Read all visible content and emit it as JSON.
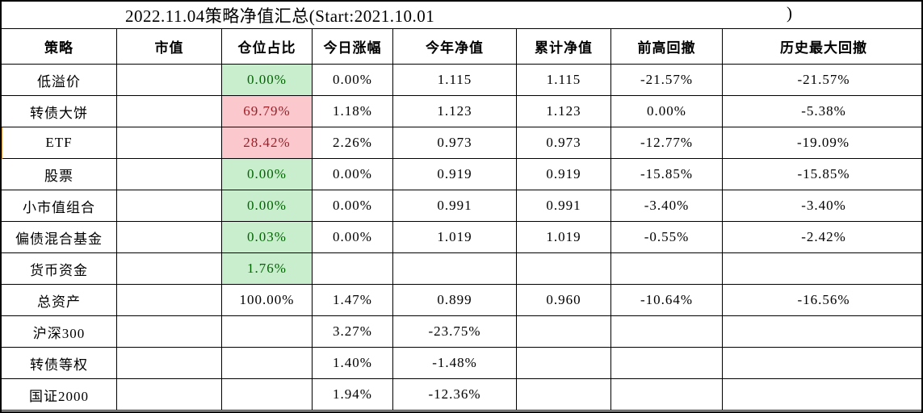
{
  "title": {
    "text": "2022.11.04策略净值汇总(Start:2021.10.01",
    "closing_paren": ")"
  },
  "colors": {
    "positive_bg": "#c9eecd",
    "positive_text": "#006400",
    "negative_bg": "#fbc8cd",
    "negative_text": "#9c1e26",
    "active_row_marker": "#e49b3f",
    "grid_border": "#000000"
  },
  "table": {
    "columns": [
      {
        "key": "strategy",
        "label": "策略"
      },
      {
        "key": "market_value",
        "label": "市值"
      },
      {
        "key": "position",
        "label": "仓位占比"
      },
      {
        "key": "today_change",
        "label": "今日涨幅"
      },
      {
        "key": "ytd_nav",
        "label": "今年净值"
      },
      {
        "key": "cum_nav",
        "label": "累计净值"
      },
      {
        "key": "drawdown_from_prev_high",
        "label": "前高回撤"
      },
      {
        "key": "max_drawdown",
        "label": "历史最大回撤"
      }
    ],
    "rows": [
      {
        "strategy": "低溢价",
        "market_value": "",
        "position": "0.00%",
        "position_style": "green",
        "today_change": "0.00%",
        "ytd_nav": "1.115",
        "cum_nav": "1.115",
        "drawdown_from_prev_high": "-21.57%",
        "max_drawdown": "-21.57%",
        "left_marker": false
      },
      {
        "strategy": "转债大饼",
        "market_value": "",
        "position": "69.79%",
        "position_style": "red",
        "today_change": "1.18%",
        "ytd_nav": "1.123",
        "cum_nav": "1.123",
        "drawdown_from_prev_high": "0.00%",
        "max_drawdown": "-5.38%",
        "left_marker": false
      },
      {
        "strategy": "ETF",
        "market_value": "",
        "position": "28.42%",
        "position_style": "red",
        "today_change": "2.26%",
        "ytd_nav": "0.973",
        "cum_nav": "0.973",
        "drawdown_from_prev_high": "-12.77%",
        "max_drawdown": "-19.09%",
        "left_marker": true
      },
      {
        "strategy": "股票",
        "market_value": "",
        "position": "0.00%",
        "position_style": "green",
        "today_change": "0.00%",
        "ytd_nav": "0.919",
        "cum_nav": "0.919",
        "drawdown_from_prev_high": "-15.85%",
        "max_drawdown": "-15.85%",
        "left_marker": false
      },
      {
        "strategy": "小市值组合",
        "market_value": "",
        "position": "0.00%",
        "position_style": "green",
        "today_change": "0.00%",
        "ytd_nav": "0.991",
        "cum_nav": "0.991",
        "drawdown_from_prev_high": "-3.40%",
        "max_drawdown": "-3.40%",
        "left_marker": false
      },
      {
        "strategy": "偏债混合基金",
        "market_value": "",
        "position": "0.03%",
        "position_style": "green",
        "today_change": "0.00%",
        "ytd_nav": "1.019",
        "cum_nav": "1.019",
        "drawdown_from_prev_high": "-0.55%",
        "max_drawdown": "-2.42%",
        "left_marker": false
      },
      {
        "strategy": "货币资金",
        "market_value": "",
        "position": "1.76%",
        "position_style": "green",
        "today_change": "",
        "ytd_nav": "",
        "cum_nav": "",
        "drawdown_from_prev_high": "",
        "max_drawdown": "",
        "left_marker": false
      },
      {
        "strategy": "总资产",
        "market_value": "",
        "position": "100.00%",
        "position_style": "none",
        "today_change": "1.47%",
        "ytd_nav": "0.899",
        "cum_nav": "0.960",
        "drawdown_from_prev_high": "-10.64%",
        "max_drawdown": "-16.56%",
        "left_marker": false
      },
      {
        "strategy": "沪深300",
        "market_value": "",
        "position": "",
        "position_style": "none",
        "today_change": "3.27%",
        "ytd_nav": "-23.75%",
        "cum_nav": "",
        "drawdown_from_prev_high": "",
        "max_drawdown": "",
        "left_marker": false
      },
      {
        "strategy": "转债等权",
        "market_value": "",
        "position": "",
        "position_style": "none",
        "today_change": "1.40%",
        "ytd_nav": "-1.48%",
        "cum_nav": "",
        "drawdown_from_prev_high": "",
        "max_drawdown": "",
        "left_marker": false
      },
      {
        "strategy": "国证2000",
        "market_value": "",
        "position": "",
        "position_style": "none",
        "today_change": "1.94%",
        "ytd_nav": "-12.36%",
        "cum_nav": "",
        "drawdown_from_prev_high": "",
        "max_drawdown": "",
        "left_marker": false
      }
    ]
  }
}
